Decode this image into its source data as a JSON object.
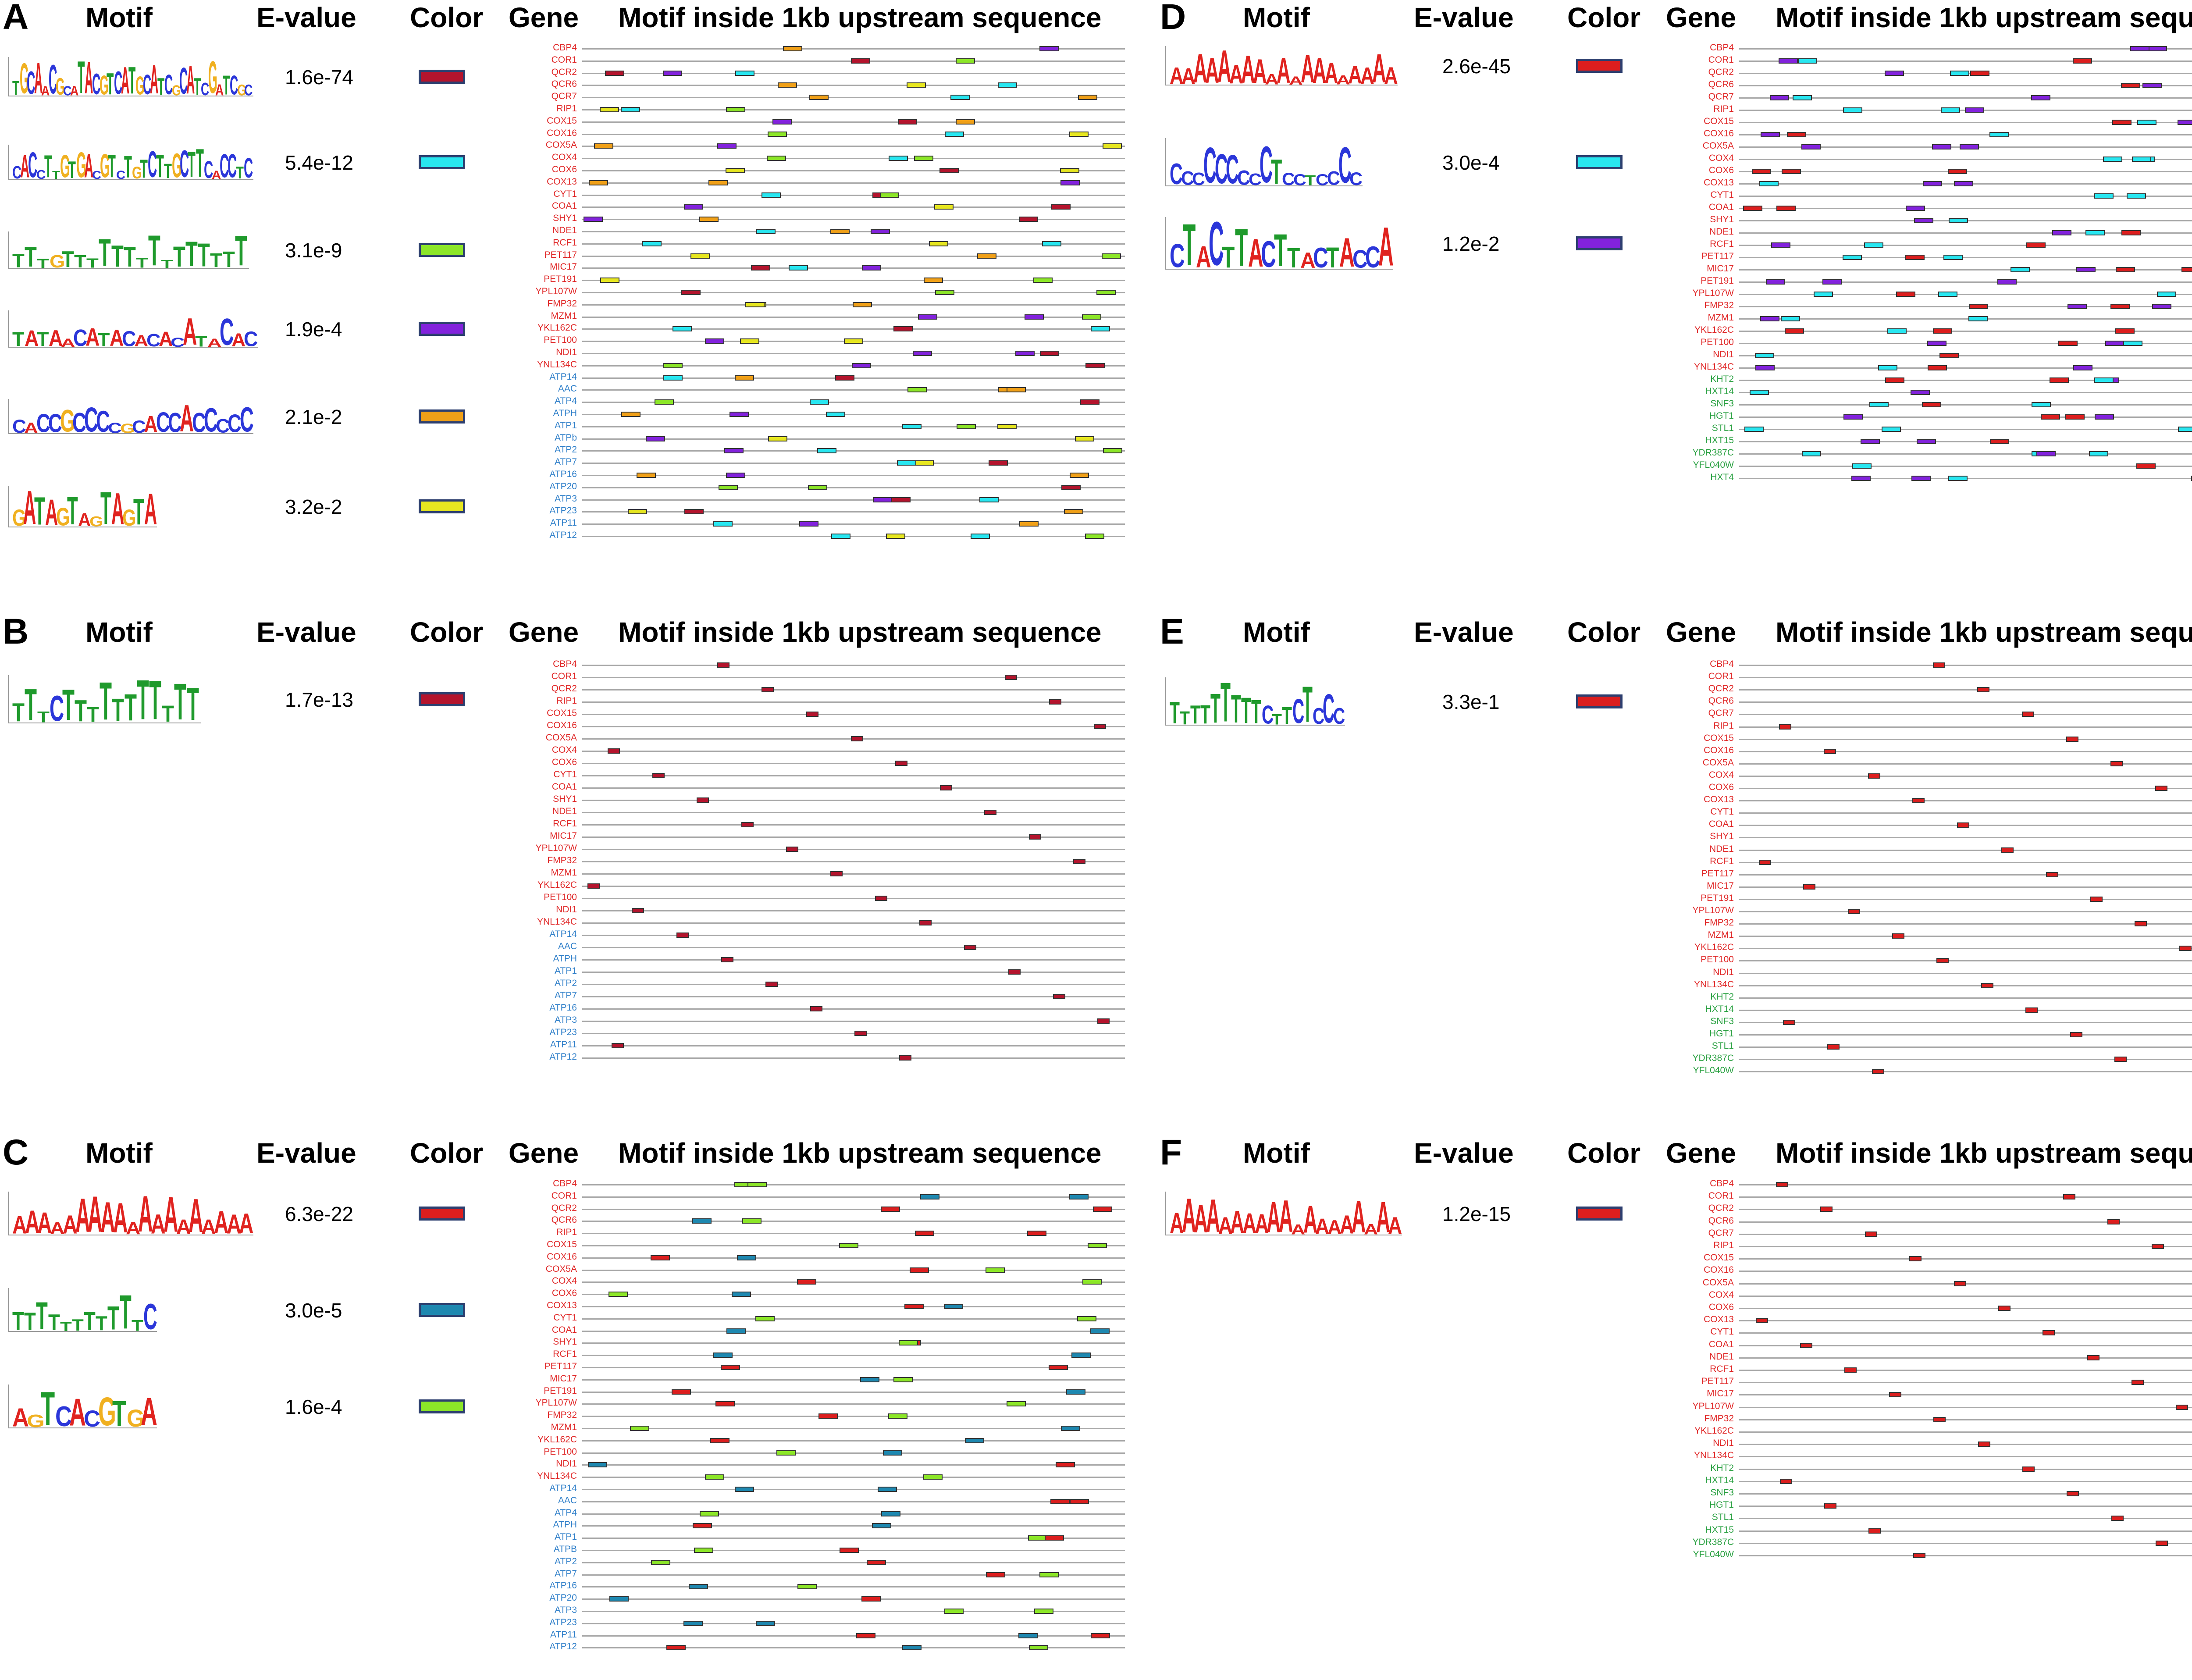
{
  "headers": {
    "motif": "Motif",
    "evalue": "E-value",
    "color": "Color",
    "gene": "Gene",
    "seq": "Motif inside 1kb upstream sequence"
  },
  "colors": {
    "red": "#dc1e1e",
    "cyan": "#28e6f0",
    "green": "#8ce628",
    "purple": "#8222dc",
    "orange": "#f0a018",
    "yellow": "#e6e620",
    "teal": "#1e88b0",
    "darkred": "#b4142d",
    "brightred": "#ff1010",
    "gene_red": "#e02828",
    "gene_blue": "#2f7fc9",
    "gene_green": "#28a040"
  },
  "panels": [
    {
      "label": "A",
      "motifs": [
        {
          "evalue": "1.6e-74",
          "color": "darkred",
          "logo": "TGCAACGCATACGTCATGCATCGCATCGATCGC",
          "logo_colors": "red"
        },
        {
          "evalue": "5.4e-12",
          "color": "cyan",
          "logo": "CACCTTGTGACGTCTGTCTTGCTTCACCTC",
          "logo_colors": "mixed"
        },
        {
          "evalue": "3.1e-9",
          "color": "green",
          "logo": "TTTGTTTTTTTTTTTTTTT",
          "logo_colors": "green"
        },
        {
          "evalue": "1.9e-4",
          "color": "purple",
          "logo": "TATAACATACACACATACAC",
          "logo_colors": "mixed"
        },
        {
          "evalue": "2.1e-2",
          "color": "orange",
          "logo": "CACCGCCCCGCACCACCCCC",
          "logo_colors": "blue"
        },
        {
          "evalue": "3.2e-2",
          "color": "yellow",
          "logo": "GATAGTAGTAGTA",
          "logo_colors": "mixed"
        }
      ],
      "genes_red": [
        "CBP4",
        "COR1",
        "QCR2",
        "QCR6",
        "QCR7",
        "RIP1",
        "COX15",
        "COX16",
        "COX5A",
        "COX4",
        "COX6",
        "COX13",
        "CYT1",
        "COA1",
        "SHY1",
        "NDE1",
        "RCF1",
        "PET117",
        "MIC17",
        "PET191",
        "YPL107W",
        "FMP32",
        "MZM1",
        "YKL162C",
        "PET100",
        "NDI1",
        "YNL134C"
      ],
      "genes_other": [
        "ATP14",
        "AAC",
        "ATP4",
        "ATPH",
        "ATP1",
        "ATPb",
        "ATP2",
        "ATP7",
        "ATP16",
        "ATP20",
        "ATP3",
        "ATP23",
        "ATP11",
        "ATP12"
      ],
      "other_color": "gene_blue"
    },
    {
      "label": "B",
      "motifs": [
        {
          "evalue": "1.7e-13",
          "color": "darkred",
          "logo": "TTTCTTTTTTTTTTT",
          "logo_colors": "green"
        }
      ],
      "genes_red": [
        "CBP4",
        "COR1",
        "QCR2",
        "RIP1",
        "COX15",
        "COX16",
        "COX5A",
        "COX4",
        "COX6",
        "CYT1",
        "COA1",
        "SHY1",
        "NDE1",
        "RCF1",
        "MIC17",
        "YPL107W",
        "FMP32",
        "MZM1",
        "YKL162C",
        "PET100",
        "NDI1",
        "YNL134C"
      ],
      "genes_other": [
        "ATP14",
        "AAC",
        "ATPH",
        "ATP1",
        "ATP2",
        "ATP7",
        "ATP16",
        "ATP3",
        "ATP23",
        "ATP11",
        "ATP12"
      ],
      "other_color": "gene_blue"
    },
    {
      "label": "C",
      "motifs": [
        {
          "evalue": "6.3e-22",
          "color": "red",
          "logo": "AAAAAAAAAAAAAAAAAAA",
          "logo_colors": "red"
        },
        {
          "evalue": "3.0e-5",
          "color": "teal",
          "logo": "TTTTTTTTTTTC",
          "logo_colors": "green"
        },
        {
          "evalue": "1.6e-4",
          "color": "green",
          "logo": "AGTCACGTGA",
          "logo_colors": "mixed"
        }
      ],
      "genes_red": [
        "CBP4",
        "COR1",
        "QCR2",
        "QCR6",
        "RIP1",
        "COX15",
        "COX16",
        "COX5A",
        "COX4",
        "COX6",
        "COX13",
        "CYT1",
        "COA1",
        "SHY1",
        "RCF1",
        "PET117",
        "MIC17",
        "PET191",
        "YPL107W",
        "FMP32",
        "MZM1",
        "YKL162C",
        "PET100",
        "NDI1",
        "YNL134C"
      ],
      "genes_other": [
        "ATP14",
        "AAC",
        "ATP4",
        "ATPH",
        "ATP1",
        "ATPB",
        "ATP2",
        "ATP7",
        "ATP16",
        "ATP20",
        "ATP3",
        "ATP23",
        "ATP11",
        "ATP12"
      ],
      "other_color": "gene_blue"
    },
    {
      "label": "D",
      "motifs": [
        {
          "evalue": "2.6e-45",
          "color": "red",
          "logo": "AAAAAAAAAAAAAAAAAAA",
          "logo_colors": "red"
        },
        {
          "evalue": "3.0e-4",
          "color": "cyan",
          "logo": "CCCCCCCCCTCCTCCCC",
          "logo_colors": "blue"
        },
        {
          "evalue": "1.2e-2",
          "color": "purple",
          "logo": "CTACTTACTTACTACCA",
          "logo_colors": "mixed"
        }
      ],
      "genes_red": [
        "CBP4",
        "COR1",
        "QCR2",
        "QCR6",
        "QCR7",
        "RIP1",
        "COX15",
        "COX16",
        "COX5A",
        "COX4",
        "COX6",
        "COX13",
        "CYT1",
        "COA1",
        "SHY1",
        "NDE1",
        "RCF1",
        "PET117",
        "MIC17",
        "PET191",
        "YPL107W",
        "FMP32",
        "MZM1",
        "YKL162C",
        "PET100",
        "NDI1",
        "YNL134C"
      ],
      "genes_other": [
        "KHT2",
        "HXT14",
        "SNF3",
        "HGT1",
        "STL1",
        "HXT15",
        "YDR387C",
        "YFL040W",
        "HXT4"
      ],
      "other_color": "gene_green"
    },
    {
      "label": "E",
      "motifs": [
        {
          "evalue": "3.3e-1",
          "color": "red",
          "logo": "TTTTTTTTTCTTCTCCC",
          "logo_colors": "green"
        }
      ],
      "genes_red": [
        "CBP4",
        "COR1",
        "QCR2",
        "QCR6",
        "QCR7",
        "RIP1",
        "COX15",
        "COX16",
        "COX5A",
        "COX4",
        "COX6",
        "COX13",
        "CYT1",
        "COA1",
        "SHY1",
        "NDE1",
        "RCF1",
        "PET117",
        "MIC17",
        "PET191",
        "YPL107W",
        "FMP32",
        "MZM1",
        "YKL162C",
        "PET100",
        "NDI1",
        "YNL134C"
      ],
      "genes_other": [
        "KHT2",
        "HXT14",
        "SNF3",
        "HGT1",
        "STL1",
        "YDR387C",
        "YFL040W"
      ],
      "other_color": "gene_green"
    },
    {
      "label": "F",
      "motifs": [
        {
          "evalue": "1.2e-15",
          "color": "red",
          "logo": "AAAAAAAAAAAAAAAAAAA",
          "logo_colors": "red"
        }
      ],
      "genes_red": [
        "CBP4",
        "COR1",
        "QCR2",
        "QCR6",
        "QCR7",
        "RIP1",
        "COX15",
        "COX16",
        "COX5A",
        "COX4",
        "COX6",
        "COX13",
        "CYT1",
        "COA1",
        "NDE1",
        "RCF1",
        "PET117",
        "MIC17",
        "YPL107W",
        "FMP32",
        "YKL162C",
        "NDI1",
        "YNL134C"
      ],
      "genes_other": [
        "KHT2",
        "HXT14",
        "SNF3",
        "HGT1",
        "STL1",
        "HXT15",
        "YDR387C",
        "YFL040W"
      ],
      "other_color": "gene_green"
    }
  ]
}
